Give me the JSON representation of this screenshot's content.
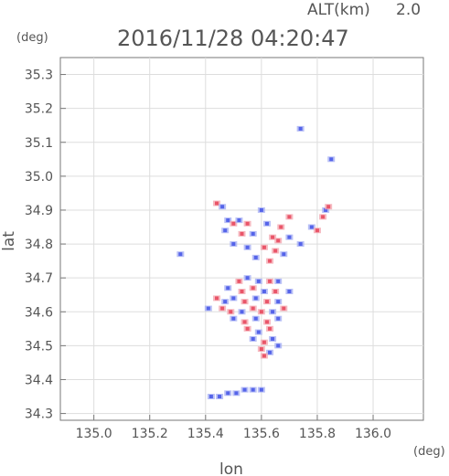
{
  "header": {
    "alt_label": "ALT(km)",
    "alt_value": "2.0",
    "timestamp": "2016/11/28 04:20:47"
  },
  "chart_data": {
    "type": "scatter",
    "xlabel": "lon",
    "ylabel": "lat",
    "xunit": "(deg)",
    "yunit": "(deg)",
    "xlim": [
      134.88,
      136.18
    ],
    "ylim": [
      34.28,
      35.35
    ],
    "xticks": [
      135.0,
      135.2,
      135.4,
      135.6,
      135.8,
      136.0
    ],
    "yticks": [
      34.3,
      34.4,
      34.5,
      34.6,
      34.7,
      34.8,
      34.9,
      35.0,
      35.1,
      35.2,
      35.3
    ],
    "xtick_labels": [
      "135.0",
      "135.2",
      "135.4",
      "135.6",
      "135.8",
      "136.0"
    ],
    "ytick_labels": [
      "34.3",
      "34.4",
      "34.5",
      "34.6",
      "34.7",
      "34.8",
      "34.9",
      "35.0",
      "35.1",
      "35.2",
      "35.3"
    ],
    "grid": true,
    "colors": {
      "positive": "#e84a5f",
      "negative": "#4a5ae8",
      "light_positive": "#f4a7b0",
      "light_negative": "#a7b0f4"
    },
    "points": [
      {
        "x": 135.74,
        "y": 35.14,
        "v": -1
      },
      {
        "x": 135.85,
        "y": 35.05,
        "v": -1
      },
      {
        "x": 135.31,
        "y": 34.77,
        "v": -1
      },
      {
        "x": 135.44,
        "y": 34.92,
        "v": 1
      },
      {
        "x": 135.46,
        "y": 34.91,
        "v": -1
      },
      {
        "x": 135.6,
        "y": 34.9,
        "v": -1
      },
      {
        "x": 135.83,
        "y": 34.9,
        "v": -1
      },
      {
        "x": 135.84,
        "y": 34.91,
        "v": 1
      },
      {
        "x": 135.82,
        "y": 34.88,
        "v": 1
      },
      {
        "x": 135.7,
        "y": 34.88,
        "v": 1
      },
      {
        "x": 135.48,
        "y": 34.87,
        "v": -1
      },
      {
        "x": 135.5,
        "y": 34.86,
        "v": 1
      },
      {
        "x": 135.52,
        "y": 34.87,
        "v": -1
      },
      {
        "x": 135.55,
        "y": 34.86,
        "v": 1
      },
      {
        "x": 135.62,
        "y": 34.86,
        "v": -1
      },
      {
        "x": 135.67,
        "y": 34.85,
        "v": 1
      },
      {
        "x": 135.78,
        "y": 34.85,
        "v": -1
      },
      {
        "x": 135.8,
        "y": 34.84,
        "v": 1
      },
      {
        "x": 135.47,
        "y": 34.84,
        "v": -1
      },
      {
        "x": 135.53,
        "y": 34.83,
        "v": 1
      },
      {
        "x": 135.57,
        "y": 34.83,
        "v": -1
      },
      {
        "x": 135.64,
        "y": 34.82,
        "v": 1
      },
      {
        "x": 135.66,
        "y": 34.81,
        "v": 1
      },
      {
        "x": 135.7,
        "y": 34.82,
        "v": -1
      },
      {
        "x": 135.74,
        "y": 34.8,
        "v": -1
      },
      {
        "x": 135.5,
        "y": 34.8,
        "v": -1
      },
      {
        "x": 135.55,
        "y": 34.79,
        "v": -1
      },
      {
        "x": 135.61,
        "y": 34.79,
        "v": 1
      },
      {
        "x": 135.65,
        "y": 34.78,
        "v": 1
      },
      {
        "x": 135.68,
        "y": 34.77,
        "v": -1
      },
      {
        "x": 135.63,
        "y": 34.75,
        "v": 1
      },
      {
        "x": 135.58,
        "y": 34.76,
        "v": -1
      },
      {
        "x": 135.52,
        "y": 34.69,
        "v": 1
      },
      {
        "x": 135.55,
        "y": 34.7,
        "v": -1
      },
      {
        "x": 135.59,
        "y": 34.69,
        "v": -1
      },
      {
        "x": 135.63,
        "y": 34.69,
        "v": 1
      },
      {
        "x": 135.66,
        "y": 34.69,
        "v": -1
      },
      {
        "x": 135.48,
        "y": 34.67,
        "v": -1
      },
      {
        "x": 135.53,
        "y": 34.66,
        "v": 1
      },
      {
        "x": 135.57,
        "y": 34.67,
        "v": 1
      },
      {
        "x": 135.61,
        "y": 34.66,
        "v": -1
      },
      {
        "x": 135.65,
        "y": 34.66,
        "v": 1
      },
      {
        "x": 135.7,
        "y": 34.66,
        "v": -1
      },
      {
        "x": 135.44,
        "y": 34.64,
        "v": 1
      },
      {
        "x": 135.47,
        "y": 34.63,
        "v": -1
      },
      {
        "x": 135.5,
        "y": 34.64,
        "v": -1
      },
      {
        "x": 135.54,
        "y": 34.63,
        "v": 1
      },
      {
        "x": 135.58,
        "y": 34.64,
        "v": -1
      },
      {
        "x": 135.62,
        "y": 34.63,
        "v": 1
      },
      {
        "x": 135.66,
        "y": 34.63,
        "v": -1
      },
      {
        "x": 135.41,
        "y": 34.61,
        "v": -1
      },
      {
        "x": 135.46,
        "y": 34.61,
        "v": 1
      },
      {
        "x": 135.49,
        "y": 34.6,
        "v": 1
      },
      {
        "x": 135.53,
        "y": 34.6,
        "v": -1
      },
      {
        "x": 135.57,
        "y": 34.61,
        "v": 1
      },
      {
        "x": 135.6,
        "y": 34.6,
        "v": 1
      },
      {
        "x": 135.64,
        "y": 34.6,
        "v": -1
      },
      {
        "x": 135.68,
        "y": 34.61,
        "v": 1
      },
      {
        "x": 135.5,
        "y": 34.58,
        "v": -1
      },
      {
        "x": 135.54,
        "y": 34.57,
        "v": 1
      },
      {
        "x": 135.58,
        "y": 34.58,
        "v": -1
      },
      {
        "x": 135.62,
        "y": 34.57,
        "v": 1
      },
      {
        "x": 135.66,
        "y": 34.58,
        "v": -1
      },
      {
        "x": 135.55,
        "y": 34.55,
        "v": 1
      },
      {
        "x": 135.59,
        "y": 34.54,
        "v": -1
      },
      {
        "x": 135.63,
        "y": 34.55,
        "v": 1
      },
      {
        "x": 135.57,
        "y": 34.52,
        "v": -1
      },
      {
        "x": 135.61,
        "y": 34.51,
        "v": 1
      },
      {
        "x": 135.64,
        "y": 34.52,
        "v": -1
      },
      {
        "x": 135.6,
        "y": 34.49,
        "v": 1
      },
      {
        "x": 135.63,
        "y": 34.48,
        "v": -1
      },
      {
        "x": 135.66,
        "y": 34.5,
        "v": -1
      },
      {
        "x": 135.61,
        "y": 34.47,
        "v": 1
      },
      {
        "x": 135.42,
        "y": 34.35,
        "v": -1
      },
      {
        "x": 135.45,
        "y": 34.35,
        "v": -1
      },
      {
        "x": 135.48,
        "y": 34.36,
        "v": -1
      },
      {
        "x": 135.51,
        "y": 34.36,
        "v": -1
      },
      {
        "x": 135.54,
        "y": 34.37,
        "v": -1
      },
      {
        "x": 135.57,
        "y": 34.37,
        "v": -1
      },
      {
        "x": 135.6,
        "y": 34.37,
        "v": -1
      }
    ]
  }
}
